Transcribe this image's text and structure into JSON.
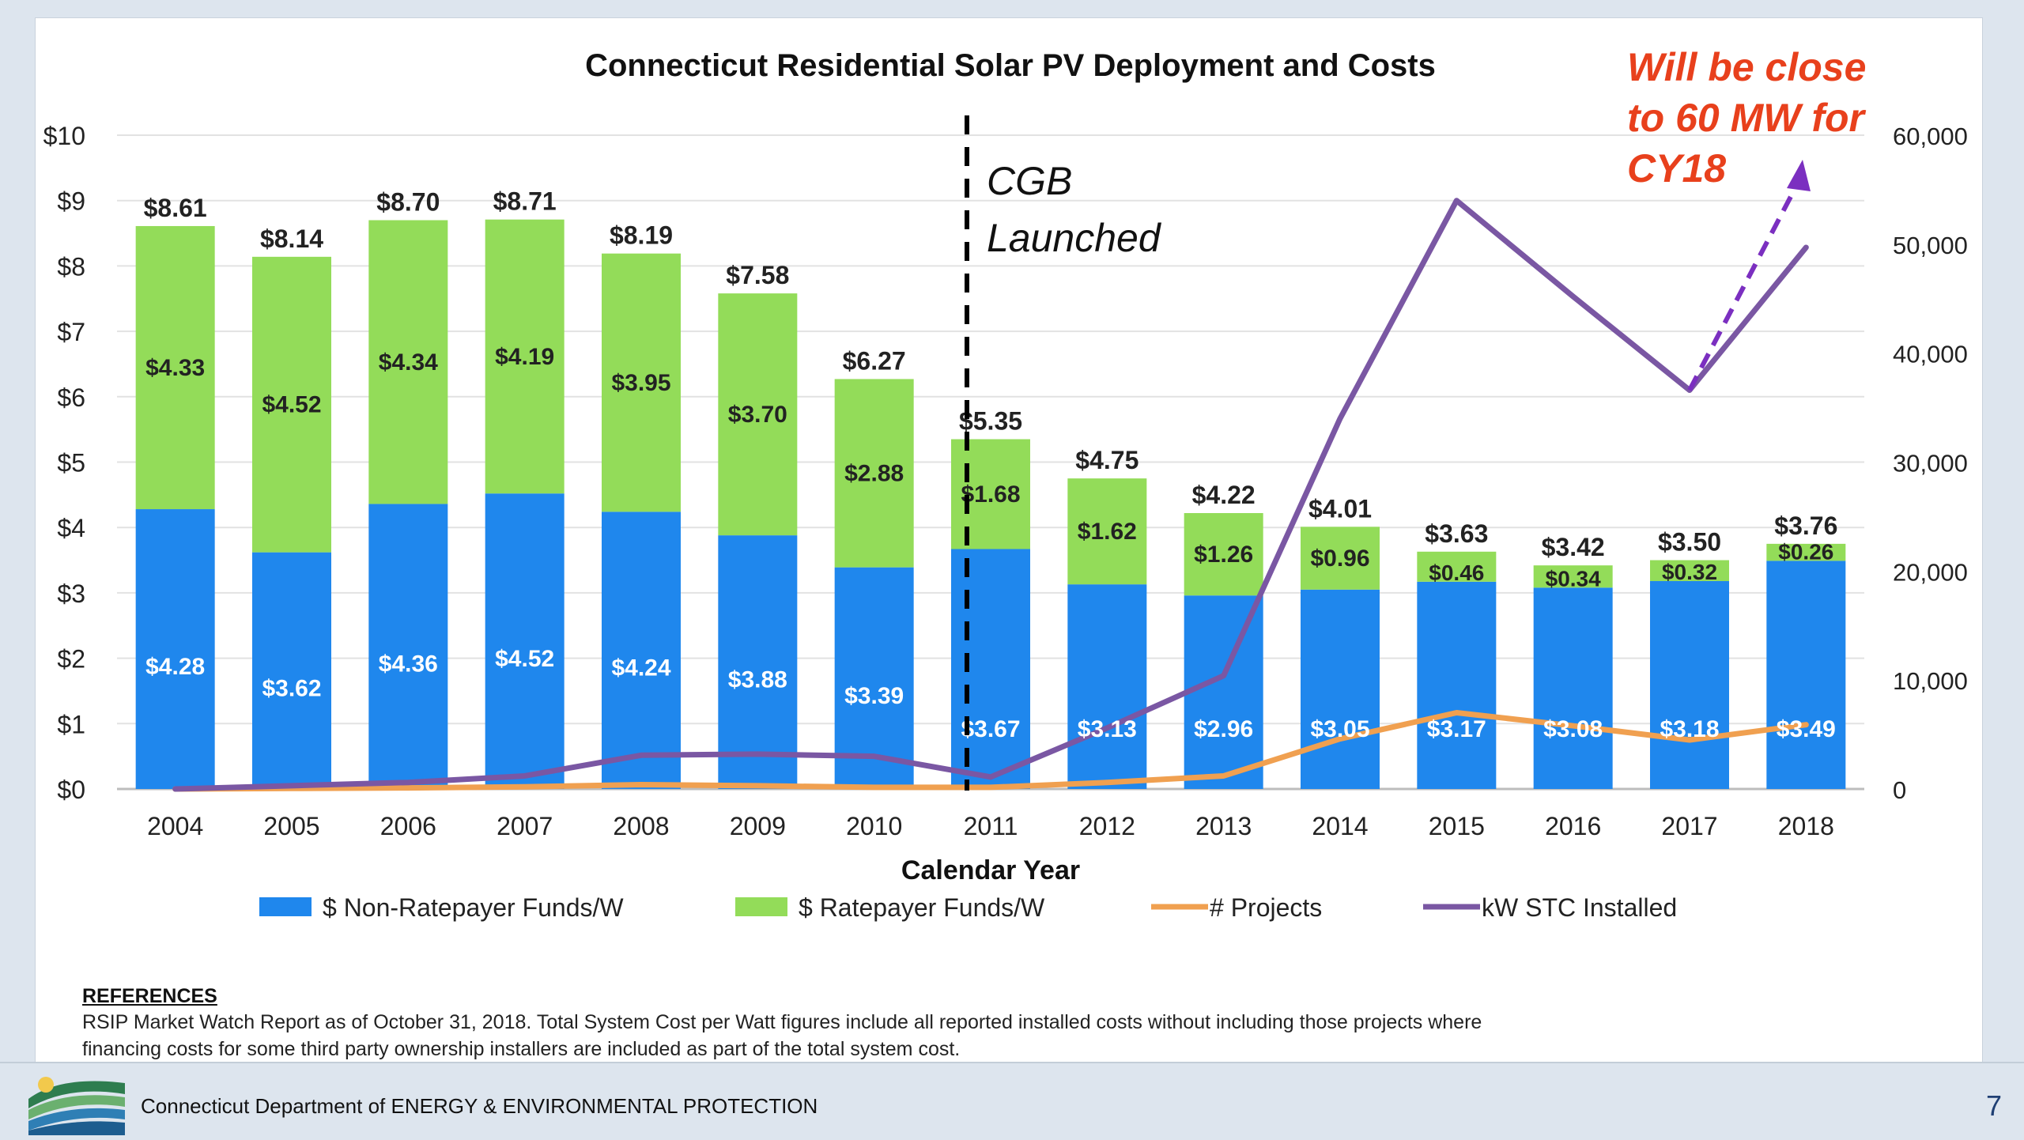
{
  "footer": {
    "department": "Connecticut Department of ENERGY & ENVIRONMENTAL PROTECTION",
    "page_number": "7"
  },
  "references": {
    "title": "REFERENCES",
    "text": "RSIP Market Watch Report as of October 31, 2018. Total System Cost per Watt figures include all reported installed costs without including those projects where financing costs for some third party ownership installers are included as part of the total system cost."
  },
  "annotations": {
    "launch": "CGB Launched",
    "projection": "Will be close to 60 MW for CY18"
  },
  "colors": {
    "non_ratepayer": "#1f87ed",
    "ratepayer": "#93dc59",
    "projects": "#f0a050",
    "kw": "#7a57a3",
    "projection_arrow": "#7b2fc0",
    "annotation_red": "#e8401c"
  },
  "chart_data": {
    "type": "bar",
    "title": "Connecticut Residential Solar PV Deployment and Costs",
    "xlabel": "Calendar Year",
    "ylabel": "",
    "categories": [
      "2004",
      "2005",
      "2006",
      "2007",
      "2008",
      "2009",
      "2010",
      "2011",
      "2012",
      "2013",
      "2014",
      "2015",
      "2016",
      "2017",
      "2018"
    ],
    "ylim": [
      0,
      10
    ],
    "y_ticks": [
      "$0",
      "$1",
      "$2",
      "$3",
      "$4",
      "$5",
      "$6",
      "$7",
      "$8",
      "$9",
      "$10"
    ],
    "y2lim": [
      0,
      60000
    ],
    "y2_ticks": [
      "0",
      "10,000",
      "20,000",
      "30,000",
      "40,000",
      "50,000",
      "60,000"
    ],
    "grid": true,
    "legend_position": "bottom",
    "series": [
      {
        "name": "$ Non-Ratepayer Funds/W",
        "type": "bar",
        "stack": "cost",
        "values": [
          4.28,
          3.62,
          4.36,
          4.52,
          4.24,
          3.88,
          3.39,
          3.67,
          3.13,
          2.96,
          3.05,
          3.17,
          3.08,
          3.18,
          3.49
        ],
        "labels": [
          "$4.28",
          "$3.62",
          "$4.36",
          "$4.52",
          "$4.24",
          "$3.88",
          "$3.39",
          "$3.67",
          "$3.13",
          "$2.96",
          "$3.05",
          "$3.17",
          "$3.08",
          "$3.18",
          "$3.49"
        ]
      },
      {
        "name": "$ Ratepayer Funds/W",
        "type": "bar",
        "stack": "cost",
        "values": [
          4.33,
          4.52,
          4.34,
          4.19,
          3.95,
          3.7,
          2.88,
          1.68,
          1.62,
          1.26,
          0.96,
          0.46,
          0.34,
          0.32,
          0.26
        ],
        "labels": [
          "$4.33",
          "$4.52",
          "$4.34",
          "$4.19",
          "$3.95",
          "$3.70",
          "$2.88",
          "$1.68",
          "$1.62",
          "$1.26",
          "$0.96",
          "$0.46",
          "$0.34",
          "$0.32",
          "$0.26"
        ]
      },
      {
        "name": "# Projects",
        "type": "line",
        "axis": "right",
        "values": [
          0,
          50,
          100,
          200,
          400,
          300,
          150,
          150,
          600,
          1200,
          4600,
          7000,
          5800,
          4500,
          5900
        ]
      },
      {
        "name": "kW STC Installed",
        "type": "line",
        "axis": "right",
        "values": [
          0,
          300,
          600,
          1200,
          3100,
          3200,
          3000,
          1100,
          5600,
          10400,
          34000,
          54000,
          45200,
          36600,
          49700
        ]
      }
    ],
    "totals": [
      8.61,
      8.14,
      8.7,
      8.71,
      8.19,
      7.58,
      6.27,
      5.35,
      4.75,
      4.22,
      4.01,
      3.63,
      3.42,
      3.5,
      3.76
    ],
    "total_labels": [
      "$8.61",
      "$8.14",
      "$8.70",
      "$8.71",
      "$8.19",
      "$7.58",
      "$6.27",
      "$5.35",
      "$4.75",
      "$4.22",
      "$4.01",
      "$3.63",
      "$3.42",
      "$3.50",
      "$3.76"
    ],
    "launch_marker": "2011",
    "projection": {
      "from": "2017",
      "target_kw": 58000
    }
  }
}
